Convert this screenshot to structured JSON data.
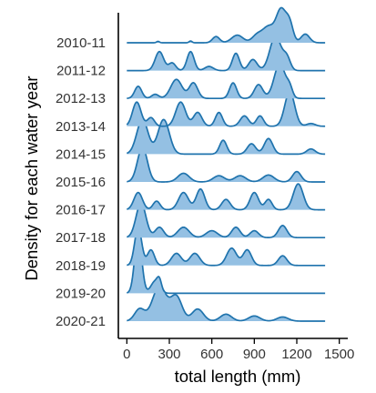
{
  "chart_data": {
    "type": "ridgeline",
    "ylabel": "Density for each water year",
    "xlabel": "total length (mm)",
    "xlim": [
      -60,
      1560
    ],
    "xticks": [
      0,
      300,
      600,
      900,
      1200,
      1500
    ],
    "x_range": [
      0,
      1400
    ],
    "grid": false,
    "fill_color": "#94c0e3",
    "line_color": "#1f73ad",
    "series": [
      {
        "name": "2010-11",
        "peaks": [
          [
            220,
            10,
            0.04
          ],
          [
            450,
            10,
            0.05
          ],
          [
            630,
            25,
            0.18
          ],
          [
            780,
            40,
            0.22
          ],
          [
            920,
            35,
            0.22
          ],
          [
            1000,
            40,
            0.45
          ],
          [
            1090,
            35,
            0.95
          ],
          [
            1150,
            25,
            0.5
          ],
          [
            1260,
            30,
            0.25
          ]
        ]
      },
      {
        "name": "2011-12",
        "peaks": [
          [
            230,
            30,
            0.55
          ],
          [
            320,
            25,
            0.22
          ],
          [
            450,
            25,
            0.55
          ],
          [
            580,
            30,
            0.12
          ],
          [
            770,
            25,
            0.5
          ],
          [
            890,
            30,
            0.32
          ],
          [
            1050,
            40,
            1.0
          ],
          [
            1130,
            25,
            0.35
          ]
        ]
      },
      {
        "name": "2012-13",
        "peaks": [
          [
            80,
            25,
            0.35
          ],
          [
            200,
            25,
            0.12
          ],
          [
            350,
            40,
            0.55
          ],
          [
            470,
            30,
            0.45
          ],
          [
            750,
            25,
            0.45
          ],
          [
            930,
            30,
            0.4
          ],
          [
            1080,
            40,
            1.0
          ],
          [
            1150,
            20,
            0.25
          ]
        ]
      },
      {
        "name": "2013-14",
        "peaks": [
          [
            70,
            30,
            0.7
          ],
          [
            170,
            25,
            0.25
          ],
          [
            380,
            35,
            0.7
          ],
          [
            500,
            30,
            0.4
          ],
          [
            650,
            25,
            0.4
          ],
          [
            830,
            30,
            0.3
          ],
          [
            940,
            25,
            0.3
          ],
          [
            1150,
            35,
            1.0
          ],
          [
            1300,
            30,
            0.08
          ]
        ]
      },
      {
        "name": "2014-15",
        "peaks": [
          [
            110,
            40,
            1.0
          ],
          [
            260,
            40,
            1.0
          ],
          [
            680,
            25,
            0.4
          ],
          [
            880,
            30,
            0.3
          ],
          [
            1000,
            30,
            0.45
          ],
          [
            1300,
            30,
            0.15
          ]
        ]
      },
      {
        "name": "2015-16",
        "peaks": [
          [
            110,
            35,
            1.0
          ],
          [
            400,
            40,
            0.25
          ],
          [
            650,
            40,
            0.18
          ],
          [
            800,
            40,
            0.18
          ],
          [
            1000,
            40,
            0.2
          ],
          [
            1200,
            30,
            0.3
          ]
        ]
      },
      {
        "name": "2016-17",
        "peaks": [
          [
            80,
            30,
            0.5
          ],
          [
            210,
            25,
            0.25
          ],
          [
            400,
            35,
            0.5
          ],
          [
            520,
            30,
            0.6
          ],
          [
            700,
            30,
            0.3
          ],
          [
            900,
            30,
            0.5
          ],
          [
            1000,
            25,
            0.3
          ],
          [
            1210,
            35,
            0.75
          ]
        ]
      },
      {
        "name": "2017-18",
        "peaks": [
          [
            100,
            35,
            1.0
          ],
          [
            230,
            30,
            0.3
          ],
          [
            400,
            40,
            0.3
          ],
          [
            600,
            40,
            0.2
          ],
          [
            770,
            30,
            0.3
          ],
          [
            900,
            30,
            0.2
          ],
          [
            1100,
            30,
            0.35
          ]
        ]
      },
      {
        "name": "2018-19",
        "peaks": [
          [
            80,
            25,
            1.1
          ],
          [
            170,
            25,
            0.45
          ],
          [
            350,
            35,
            0.35
          ],
          [
            480,
            35,
            0.35
          ],
          [
            740,
            35,
            0.5
          ],
          [
            850,
            30,
            0.45
          ],
          [
            1100,
            30,
            0.28
          ]
        ]
      },
      {
        "name": "2019-20",
        "peaks": [
          [
            80,
            25,
            1.7
          ],
          [
            200,
            30,
            0.35
          ],
          [
            230,
            15,
            0.25
          ]
        ]
      },
      {
        "name": "2020-21",
        "peaks": [
          [
            90,
            35,
            0.35
          ],
          [
            230,
            50,
            1.0
          ],
          [
            350,
            40,
            0.7
          ],
          [
            500,
            40,
            0.35
          ],
          [
            700,
            40,
            0.2
          ],
          [
            900,
            40,
            0.15
          ],
          [
            1100,
            40,
            0.12
          ]
        ]
      }
    ]
  }
}
